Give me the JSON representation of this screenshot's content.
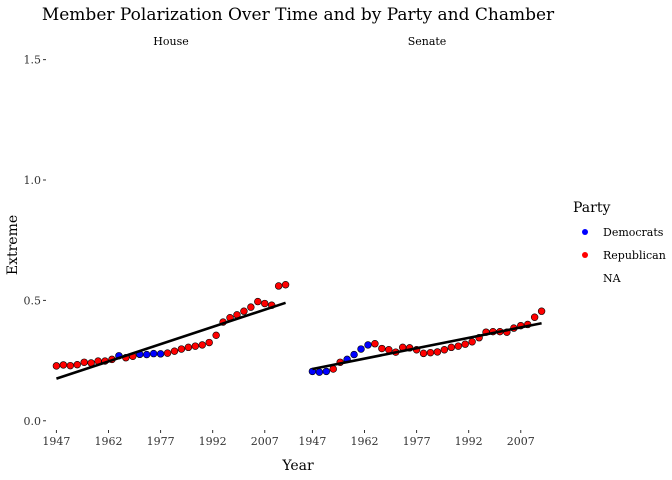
{
  "chart_data": {
    "type": "scatter",
    "title": "Member Polarization Over Time and by Party and Chamber",
    "xlabel": "Year",
    "ylabel": "Extreme",
    "xlim": [
      1944,
      2016
    ],
    "ylim": [
      -0.03,
      1.54
    ],
    "x_ticks": [
      {
        "v": 1947,
        "label": "1947"
      },
      {
        "v": 1962,
        "label": "1962"
      },
      {
        "v": 1977,
        "label": "1977"
      },
      {
        "v": 1992,
        "label": "1992"
      },
      {
        "v": 2007,
        "label": "2007"
      }
    ],
    "y_ticks": [
      {
        "v": 0.0,
        "label": "0.0"
      },
      {
        "v": 0.5,
        "label": "0.5"
      },
      {
        "v": 1.0,
        "label": "1.0"
      },
      {
        "v": 1.5,
        "label": "1.5"
      }
    ],
    "grid": false,
    "legend": {
      "title": "Party",
      "position": "right",
      "entries": [
        {
          "label": "Democrats",
          "color": "#0000ff"
        },
        {
          "label": "Republican",
          "color": "#ff0000"
        },
        {
          "label": "NA",
          "color": null
        }
      ]
    },
    "panels": [
      {
        "name": "House",
        "trend": {
          "x": [
            1947,
            2013
          ],
          "y": [
            0.175,
            0.49
          ]
        },
        "points": [
          {
            "x": 1947,
            "y": 0.228,
            "party": "Republican"
          },
          {
            "x": 1949,
            "y": 0.232,
            "party": "Republican"
          },
          {
            "x": 1951,
            "y": 0.229,
            "party": "Republican"
          },
          {
            "x": 1953,
            "y": 0.233,
            "party": "Republican"
          },
          {
            "x": 1955,
            "y": 0.243,
            "party": "Republican"
          },
          {
            "x": 1957,
            "y": 0.24,
            "party": "Republican"
          },
          {
            "x": 1959,
            "y": 0.248,
            "party": "Republican"
          },
          {
            "x": 1961,
            "y": 0.248,
            "party": "Republican"
          },
          {
            "x": 1963,
            "y": 0.255,
            "party": "Republican"
          },
          {
            "x": 1965,
            "y": 0.27,
            "party": "Democrats"
          },
          {
            "x": 1967,
            "y": 0.262,
            "party": "Republican"
          },
          {
            "x": 1969,
            "y": 0.268,
            "party": "Republican"
          },
          {
            "x": 1971,
            "y": 0.276,
            "party": "Democrats"
          },
          {
            "x": 1973,
            "y": 0.275,
            "party": "Democrats"
          },
          {
            "x": 1975,
            "y": 0.279,
            "party": "Democrats"
          },
          {
            "x": 1977,
            "y": 0.278,
            "party": "Democrats"
          },
          {
            "x": 1979,
            "y": 0.281,
            "party": "Republican"
          },
          {
            "x": 1981,
            "y": 0.289,
            "party": "Republican"
          },
          {
            "x": 1983,
            "y": 0.298,
            "party": "Republican"
          },
          {
            "x": 1985,
            "y": 0.305,
            "party": "Republican"
          },
          {
            "x": 1987,
            "y": 0.31,
            "party": "Republican"
          },
          {
            "x": 1989,
            "y": 0.315,
            "party": "Republican"
          },
          {
            "x": 1991,
            "y": 0.325,
            "party": "Republican"
          },
          {
            "x": 1993,
            "y": 0.355,
            "party": "Republican"
          },
          {
            "x": 1995,
            "y": 0.41,
            "party": "Republican"
          },
          {
            "x": 1997,
            "y": 0.428,
            "party": "Republican"
          },
          {
            "x": 1999,
            "y": 0.44,
            "party": "Republican"
          },
          {
            "x": 2001,
            "y": 0.455,
            "party": "Republican"
          },
          {
            "x": 2003,
            "y": 0.472,
            "party": "Republican"
          },
          {
            "x": 2005,
            "y": 0.495,
            "party": "Republican"
          },
          {
            "x": 2007,
            "y": 0.487,
            "party": "Republican"
          },
          {
            "x": 2009,
            "y": 0.48,
            "party": "Republican"
          },
          {
            "x": 2011,
            "y": 0.56,
            "party": "Republican"
          },
          {
            "x": 2013,
            "y": 0.565,
            "party": "Republican"
          }
        ]
      },
      {
        "name": "Senate",
        "trend": {
          "x": [
            1947,
            2013
          ],
          "y": [
            0.215,
            0.405
          ]
        },
        "points": [
          {
            "x": 1947,
            "y": 0.205,
            "party": "Democrats"
          },
          {
            "x": 1949,
            "y": 0.202,
            "party": "Democrats"
          },
          {
            "x": 1951,
            "y": 0.205,
            "party": "Democrats"
          },
          {
            "x": 1953,
            "y": 0.215,
            "party": "Republican"
          },
          {
            "x": 1955,
            "y": 0.243,
            "party": "Republican"
          },
          {
            "x": 1957,
            "y": 0.255,
            "party": "Democrats"
          },
          {
            "x": 1959,
            "y": 0.275,
            "party": "Democrats"
          },
          {
            "x": 1961,
            "y": 0.298,
            "party": "Democrats"
          },
          {
            "x": 1963,
            "y": 0.315,
            "party": "Democrats"
          },
          {
            "x": 1965,
            "y": 0.32,
            "party": "Republican"
          },
          {
            "x": 1967,
            "y": 0.3,
            "party": "Republican"
          },
          {
            "x": 1969,
            "y": 0.295,
            "party": "Republican"
          },
          {
            "x": 1971,
            "y": 0.285,
            "party": "Republican"
          },
          {
            "x": 1973,
            "y": 0.305,
            "party": "Republican"
          },
          {
            "x": 1975,
            "y": 0.303,
            "party": "Republican"
          },
          {
            "x": 1977,
            "y": 0.295,
            "party": "Republican"
          },
          {
            "x": 1979,
            "y": 0.28,
            "party": "Republican"
          },
          {
            "x": 1981,
            "y": 0.283,
            "party": "Republican"
          },
          {
            "x": 1983,
            "y": 0.286,
            "party": "Republican"
          },
          {
            "x": 1985,
            "y": 0.295,
            "party": "Republican"
          },
          {
            "x": 1987,
            "y": 0.305,
            "party": "Republican"
          },
          {
            "x": 1989,
            "y": 0.31,
            "party": "Republican"
          },
          {
            "x": 1991,
            "y": 0.318,
            "party": "Republican"
          },
          {
            "x": 1993,
            "y": 0.328,
            "party": "Republican"
          },
          {
            "x": 1995,
            "y": 0.345,
            "party": "Republican"
          },
          {
            "x": 1997,
            "y": 0.368,
            "party": "Republican"
          },
          {
            "x": 1999,
            "y": 0.37,
            "party": "Republican"
          },
          {
            "x": 2001,
            "y": 0.37,
            "party": "Republican"
          },
          {
            "x": 2003,
            "y": 0.368,
            "party": "Republican"
          },
          {
            "x": 2005,
            "y": 0.385,
            "party": "Republican"
          },
          {
            "x": 2007,
            "y": 0.395,
            "party": "Republican"
          },
          {
            "x": 2009,
            "y": 0.4,
            "party": "Republican"
          },
          {
            "x": 2011,
            "y": 0.43,
            "party": "Republican"
          },
          {
            "x": 2013,
            "y": 0.455,
            "party": "Republican"
          }
        ]
      }
    ]
  }
}
